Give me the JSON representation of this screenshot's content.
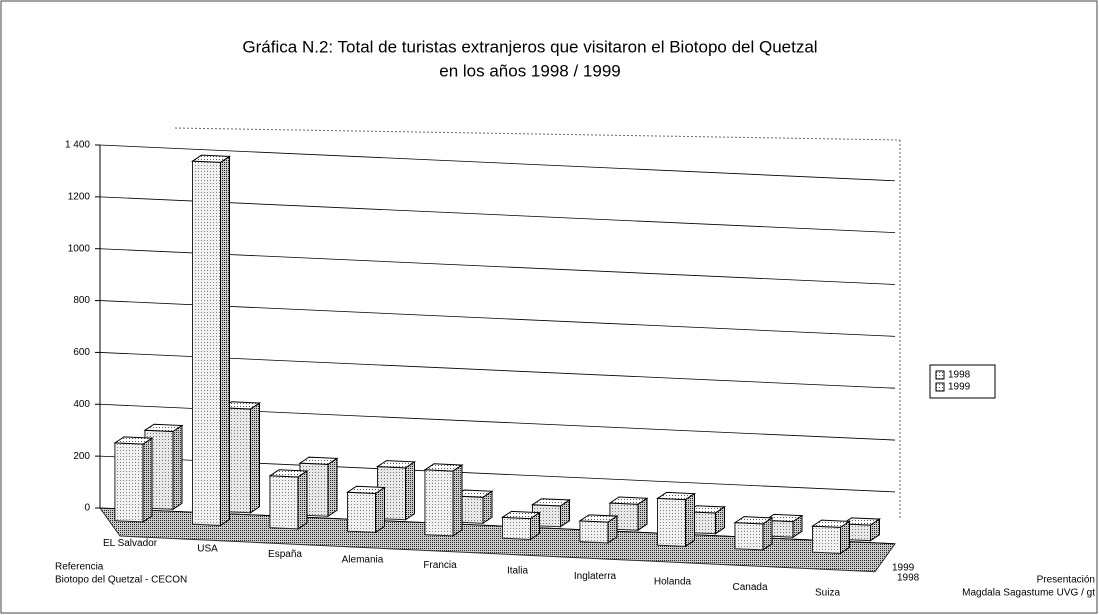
{
  "chart_data": {
    "type": "bar3d",
    "title": "Gráfica N.2: Total de turistas extranjeros que visitaron el Biotopo del Quetzal",
    "subtitle": "en los años 1998 / 1999",
    "categories": [
      "EL Salvador",
      "USA",
      "España",
      "Alemania",
      "Francia",
      "Italia",
      "Inglaterra",
      "Holanda",
      "Canada",
      "Suiza"
    ],
    "series": [
      {
        "name": "1998",
        "color": "#d8d8d8",
        "values": [
          300,
          1400,
          200,
          150,
          250,
          80,
          80,
          180,
          100,
          100
        ]
      },
      {
        "name": "1999",
        "color": "#bdbdbd",
        "values": [
          300,
          400,
          200,
          200,
          100,
          80,
          100,
          80,
          60,
          60
        ]
      }
    ],
    "ylim": [
      0,
      1400
    ],
    "yticks": [
      0,
      200,
      400,
      600,
      800,
      1000,
      1200,
      {
        "value": 1400,
        "label": "1 400"
      }
    ],
    "grid": true,
    "legend": "right",
    "notes": {
      "reference_title": "Referencia",
      "reference": "Biotopo del Quetzal - CECON",
      "presentation_title": "Presentación",
      "presentation": "Magdala Sagastume UVG / gt"
    }
  }
}
